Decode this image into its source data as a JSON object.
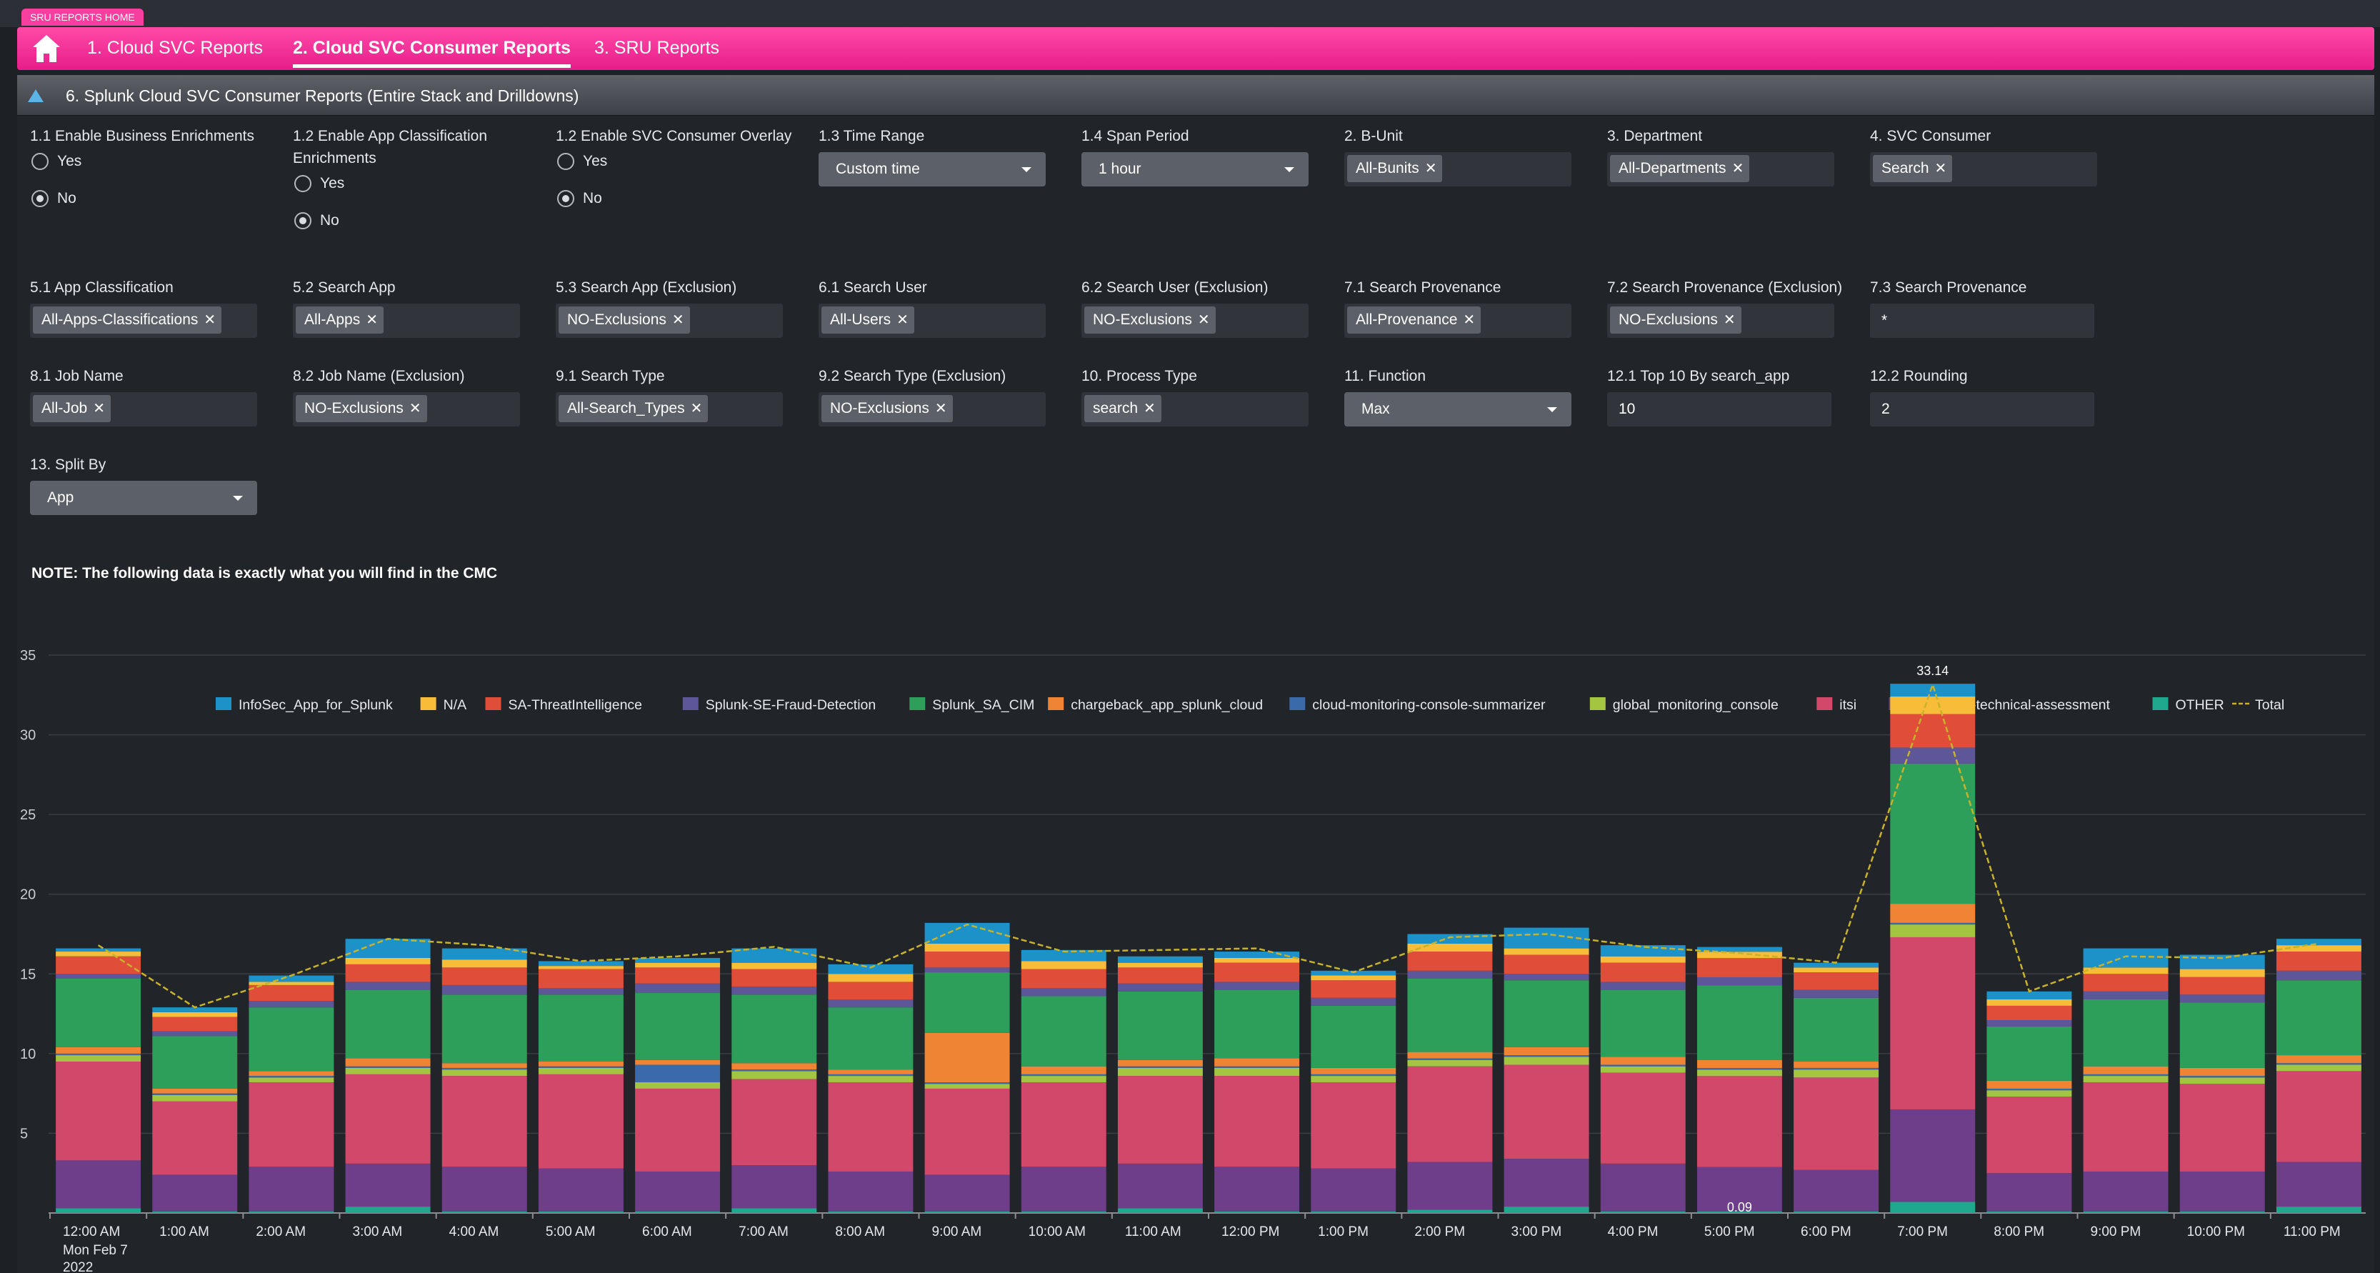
{
  "app": {
    "home_tag": "SRU REPORTS HOME"
  },
  "nav": {
    "tabs": [
      {
        "label": "1. Cloud SVC Reports",
        "active": false
      },
      {
        "label": "2. Cloud SVC Consumer Reports",
        "active": true
      },
      {
        "label": "3. SRU Reports",
        "active": false
      }
    ]
  },
  "panel": {
    "title": "6. Splunk Cloud SVC Consumer Reports (Entire Stack and Drilldowns)"
  },
  "inputs": {
    "biz_enrich": {
      "label": "1.1 Enable Business Enrichments",
      "options": [
        "Yes",
        "No"
      ],
      "selected": "No"
    },
    "app_enrich": {
      "label": "1.2 Enable App Classification Enrichments",
      "options": [
        "Yes",
        "No"
      ],
      "selected": "No"
    },
    "svc_overlay": {
      "label": "1.2 Enable SVC Consumer Overlay",
      "options": [
        "Yes",
        "No"
      ],
      "selected": "No"
    },
    "time_range": {
      "label": "1.3 Time Range",
      "value": "Custom time"
    },
    "span_period": {
      "label": "1.4 Span Period",
      "value": "1 hour"
    },
    "b_unit": {
      "label": "2. B-Unit",
      "value": "All-Bunits"
    },
    "department": {
      "label": "3. Department",
      "value": "All-Departments"
    },
    "svc_consumer": {
      "label": "4. SVC Consumer",
      "value": "Search"
    },
    "app_class": {
      "label": "5.1 App Classification",
      "value": "All-Apps-Classifications"
    },
    "search_app": {
      "label": "5.2 Search App",
      "value": "All-Apps"
    },
    "search_app_excl": {
      "label": "5.3 Search App (Exclusion)",
      "value": "NO-Exclusions"
    },
    "search_user": {
      "label": "6.1 Search User",
      "value": "All-Users"
    },
    "search_user_excl": {
      "label": "6.2 Search User (Exclusion)",
      "value": "NO-Exclusions"
    },
    "search_prov": {
      "label": "7.1 Search Provenance",
      "value": "All-Provenance"
    },
    "search_prov_excl": {
      "label": "7.2 Search Provenance (Exclusion)",
      "value": "NO-Exclusions"
    },
    "search_prov_text": {
      "label": "7.3 Search Provenance",
      "value": "*"
    },
    "job_name": {
      "label": "8.1 Job Name",
      "value": "All-Job"
    },
    "job_name_excl": {
      "label": "8.2 Job Name (Exclusion)",
      "value": "NO-Exclusions"
    },
    "search_type": {
      "label": "9.1 Search Type",
      "value": "All-Search_Types"
    },
    "search_type_excl": {
      "label": "9.2 Search Type (Exclusion)",
      "value": "NO-Exclusions"
    },
    "process_type": {
      "label": "10. Process Type",
      "value": "search"
    },
    "function": {
      "label": "11. Function",
      "value": "Max"
    },
    "top10": {
      "label": "12.1 Top 10 By search_app",
      "value": "10"
    },
    "rounding": {
      "label": "12.2 Rounding",
      "value": "2"
    },
    "split_by": {
      "label": "13. Split By",
      "value": "App"
    }
  },
  "note": "NOTE: The following data is exactly what you will find in the CMC",
  "chart_data": {
    "type": "bar",
    "stacked": true,
    "categories": [
      "12:00 AM",
      "1:00 AM",
      "2:00 AM",
      "3:00 AM",
      "4:00 AM",
      "5:00 AM",
      "6:00 AM",
      "7:00 AM",
      "8:00 AM",
      "9:00 AM",
      "10:00 AM",
      "11:00 AM",
      "12:00 PM",
      "1:00 PM",
      "2:00 PM",
      "3:00 PM",
      "4:00 PM",
      "5:00 PM",
      "6:00 PM",
      "7:00 PM",
      "8:00 PM",
      "9:00 PM",
      "10:00 PM",
      "11:00 PM"
    ],
    "x_axis_first_label_extra": [
      "Mon Feb 7",
      "2022"
    ],
    "ylim": [
      0,
      35
    ],
    "yticks": [
      5,
      10,
      15,
      20,
      25,
      30,
      35
    ],
    "grid": true,
    "legend_position": "top",
    "series": [
      {
        "name": "OTHER",
        "color": "#1fa88e",
        "values": [
          0.3,
          0.1,
          0.1,
          0.4,
          0.1,
          0.1,
          0.1,
          0.3,
          0.1,
          0.1,
          0.1,
          0.3,
          0.1,
          0.1,
          0.2,
          0.4,
          0.1,
          0.09,
          0.1,
          0.7,
          0.1,
          0.1,
          0.1,
          0.4
        ]
      },
      {
        "name": "splunk-ps-technical-assessment",
        "color": "#6f3e8a",
        "values": [
          3.0,
          2.3,
          2.8,
          2.7,
          2.8,
          2.7,
          2.5,
          2.7,
          2.5,
          2.3,
          2.8,
          2.8,
          2.8,
          2.7,
          3.0,
          3.0,
          3.0,
          2.8,
          2.6,
          5.8,
          2.4,
          2.5,
          2.5,
          2.8
        ]
      },
      {
        "name": "itsi",
        "color": "#d1486b",
        "values": [
          6.2,
          4.6,
          5.3,
          5.6,
          5.7,
          5.9,
          5.2,
          5.4,
          5.6,
          5.4,
          5.3,
          5.5,
          5.7,
          5.4,
          6.0,
          5.9,
          5.7,
          5.7,
          5.8,
          10.8,
          4.8,
          5.6,
          5.5,
          5.7
        ]
      },
      {
        "name": "global_monitoring_console",
        "color": "#a4c542",
        "values": [
          0.4,
          0.4,
          0.3,
          0.4,
          0.4,
          0.4,
          0.4,
          0.5,
          0.4,
          0.3,
          0.4,
          0.5,
          0.5,
          0.4,
          0.4,
          0.5,
          0.4,
          0.4,
          0.5,
          0.8,
          0.4,
          0.4,
          0.4,
          0.4
        ]
      },
      {
        "name": "cloud-monitoring-console-summarizer",
        "color": "#3a6aaa",
        "values": [
          0.1,
          0.1,
          0.1,
          0.1,
          0.1,
          0.1,
          1.1,
          0.1,
          0.1,
          0.1,
          0.1,
          0.1,
          0.1,
          0.1,
          0.1,
          0.1,
          0.1,
          0.1,
          0.1,
          0.1,
          0.1,
          0.1,
          0.1,
          0.1
        ]
      },
      {
        "name": "chargeback_app_splunk_cloud",
        "color": "#ee8434",
        "values": [
          0.4,
          0.3,
          0.3,
          0.5,
          0.3,
          0.3,
          0.3,
          0.4,
          0.3,
          3.1,
          0.5,
          0.4,
          0.5,
          0.4,
          0.4,
          0.5,
          0.5,
          0.5,
          0.4,
          1.2,
          0.5,
          0.5,
          0.5,
          0.5
        ]
      },
      {
        "name": "Splunk_SA_CIM",
        "color": "#2e9e5b",
        "values": [
          4.3,
          3.3,
          4.0,
          4.3,
          4.3,
          4.2,
          4.2,
          4.3,
          3.9,
          3.8,
          4.4,
          4.3,
          4.3,
          3.9,
          4.6,
          4.2,
          4.2,
          4.7,
          4.0,
          8.8,
          3.4,
          4.2,
          4.1,
          4.7
        ]
      },
      {
        "name": "Splunk-SE-Fraud-Detection",
        "color": "#5d5699",
        "values": [
          0.3,
          0.3,
          0.4,
          0.5,
          0.6,
          0.4,
          0.6,
          0.5,
          0.5,
          0.3,
          0.5,
          0.5,
          0.5,
          0.5,
          0.5,
          0.4,
          0.5,
          0.5,
          0.5,
          1.0,
          0.4,
          0.5,
          0.5,
          0.6
        ]
      },
      {
        "name": "SA-ThreatIntelligence",
        "color": "#e04e3a",
        "values": [
          1.1,
          0.9,
          1.0,
          1.1,
          1.1,
          1.2,
          1.0,
          1.1,
          1.1,
          1.0,
          1.2,
          1.0,
          1.2,
          1.1,
          1.2,
          1.2,
          1.2,
          1.2,
          1.1,
          2.1,
          0.9,
          1.1,
          1.1,
          1.2
        ]
      },
      {
        "name": "N/A",
        "color": "#f7bc38",
        "values": [
          0.3,
          0.3,
          0.2,
          0.4,
          0.5,
          0.2,
          0.3,
          0.4,
          0.5,
          0.5,
          0.5,
          0.3,
          0.3,
          0.3,
          0.5,
          0.4,
          0.4,
          0.4,
          0.3,
          1.1,
          0.4,
          0.4,
          0.5,
          0.4
        ]
      },
      {
        "name": "InfoSec_App_for_Splunk",
        "color": "#1d92c9",
        "values": [
          0.2,
          0.3,
          0.4,
          1.2,
          0.7,
          0.3,
          0.3,
          0.9,
          0.6,
          1.3,
          0.7,
          0.4,
          0.4,
          0.3,
          0.6,
          1.3,
          0.7,
          0.3,
          0.3,
          0.8,
          0.5,
          1.2,
          0.9,
          0.4
        ]
      }
    ],
    "legend_order": [
      "InfoSec_App_for_Splunk",
      "N/A",
      "SA-ThreatIntelligence",
      "Splunk-SE-Fraud-Detection",
      "Splunk_SA_CIM",
      "chargeback_app_splunk_cloud",
      "cloud-monitoring-console-summarizer",
      "global_monitoring_console",
      "itsi",
      "splunk-ps-technical-assessment",
      "OTHER",
      "Total"
    ],
    "total_line": {
      "name": "Total",
      "color": "#c8b22a",
      "values": [
        16.8,
        12.9,
        14.9,
        17.2,
        16.8,
        15.8,
        16.1,
        16.7,
        15.4,
        18.1,
        16.4,
        16.5,
        16.6,
        15.1,
        17.3,
        17.5,
        16.7,
        16.3,
        15.7,
        33.14,
        13.9,
        16.1,
        16.0,
        16.9
      ]
    },
    "data_labels": [
      {
        "text": "33.14",
        "index": 19
      },
      {
        "text": "0.09",
        "index": 17
      }
    ]
  }
}
